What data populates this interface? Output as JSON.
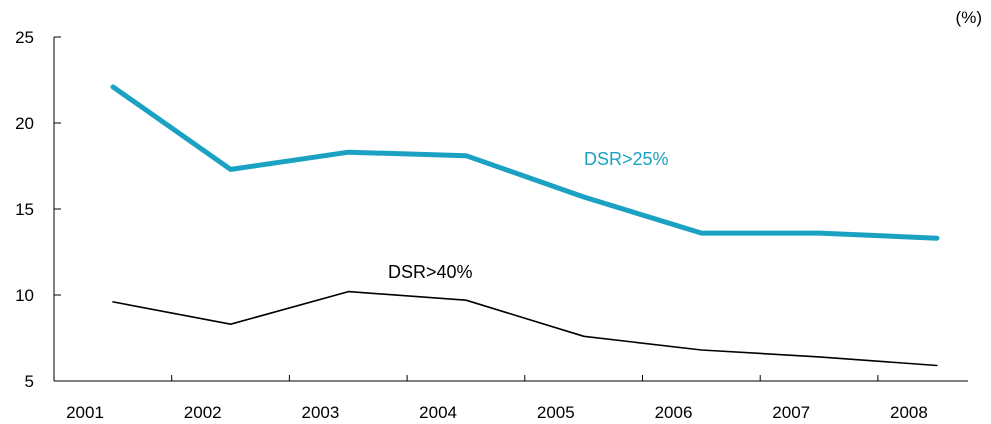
{
  "chart_data": {
    "type": "line",
    "unit": "(%)",
    "x": [
      "2001",
      "2002",
      "2003",
      "2004",
      "2005",
      "2006",
      "2007",
      "2008"
    ],
    "ylim": [
      5,
      25
    ],
    "yticks": [
      5,
      10,
      15,
      20,
      25
    ],
    "grid": false,
    "series": [
      {
        "name": "DSR>25%",
        "values": [
          22.1,
          17.3,
          18.3,
          18.1,
          15.7,
          13.6,
          13.6,
          13.3
        ],
        "color": "#1BA1C1"
      },
      {
        "name": "DSR>40%",
        "values": [
          9.6,
          8.3,
          10.2,
          9.7,
          7.6,
          6.8,
          6.4,
          5.9
        ],
        "color": "#000000"
      }
    ]
  }
}
